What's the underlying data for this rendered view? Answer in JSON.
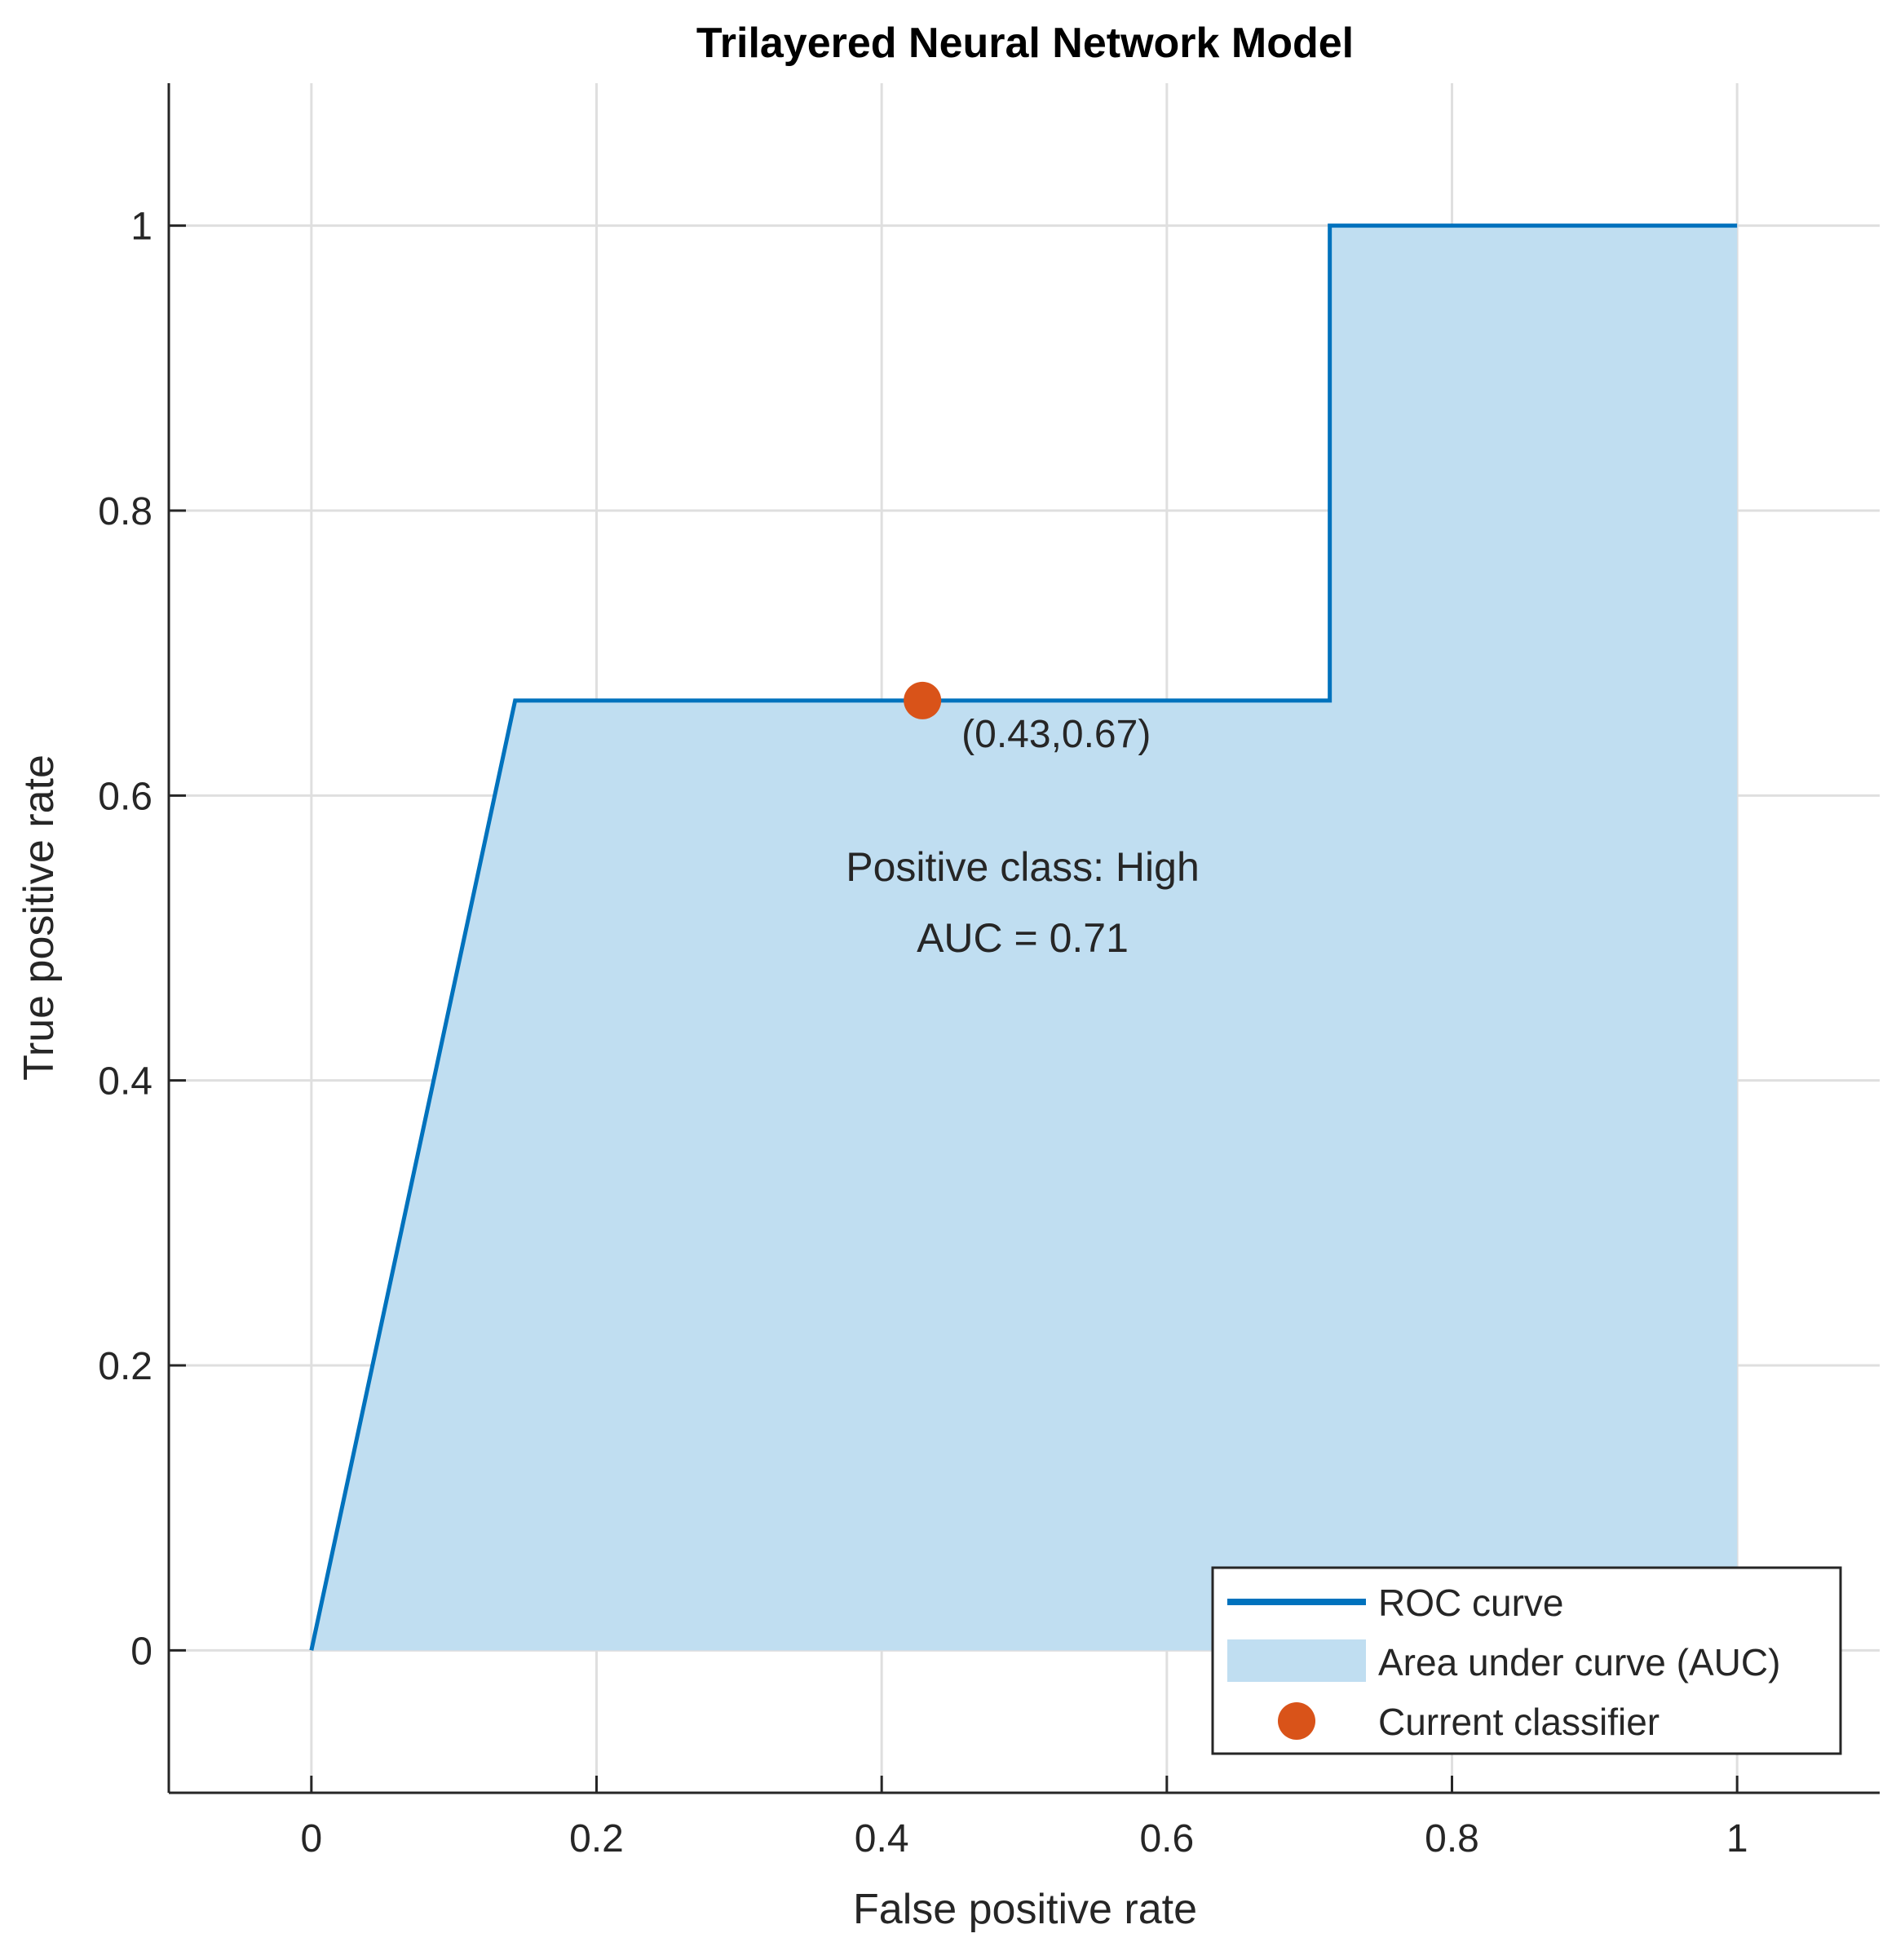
{
  "chart_data": {
    "type": "line",
    "title": "Trilayered Neural Network Model",
    "xlabel": "False positive rate",
    "ylabel": "True positive rate",
    "xlim": [
      -0.1,
      1.1
    ],
    "ylim": [
      -0.1,
      1.1
    ],
    "xticks": [
      0,
      0.2,
      0.4,
      0.6,
      0.8,
      1
    ],
    "xtick_labels": [
      "0",
      "0.2",
      "0.4",
      "0.6",
      "0.8",
      "1"
    ],
    "yticks": [
      0,
      0.2,
      0.4,
      0.6,
      0.8,
      1
    ],
    "ytick_labels": [
      "0",
      "0.2",
      "0.4",
      "0.6",
      "0.8",
      "1"
    ],
    "grid": true,
    "legend_position": "bottom-right",
    "series": [
      {
        "name": "ROC curve",
        "kind": "line",
        "color": "#0072BD",
        "x": [
          0,
          0.1429,
          0.7143,
          0.7143,
          1
        ],
        "y": [
          0,
          0.6667,
          0.6667,
          1,
          1
        ]
      },
      {
        "name": "Area under curve (AUC)",
        "kind": "area",
        "color": "#C0DEF1"
      },
      {
        "name": "Current classifier",
        "kind": "point",
        "color": "#D95319",
        "x": [
          0.4286
        ],
        "y": [
          0.6667
        ],
        "label": "(0.43,0.67)"
      }
    ],
    "annotations": [
      "Positive class: High",
      "AUC = 0.71"
    ]
  }
}
